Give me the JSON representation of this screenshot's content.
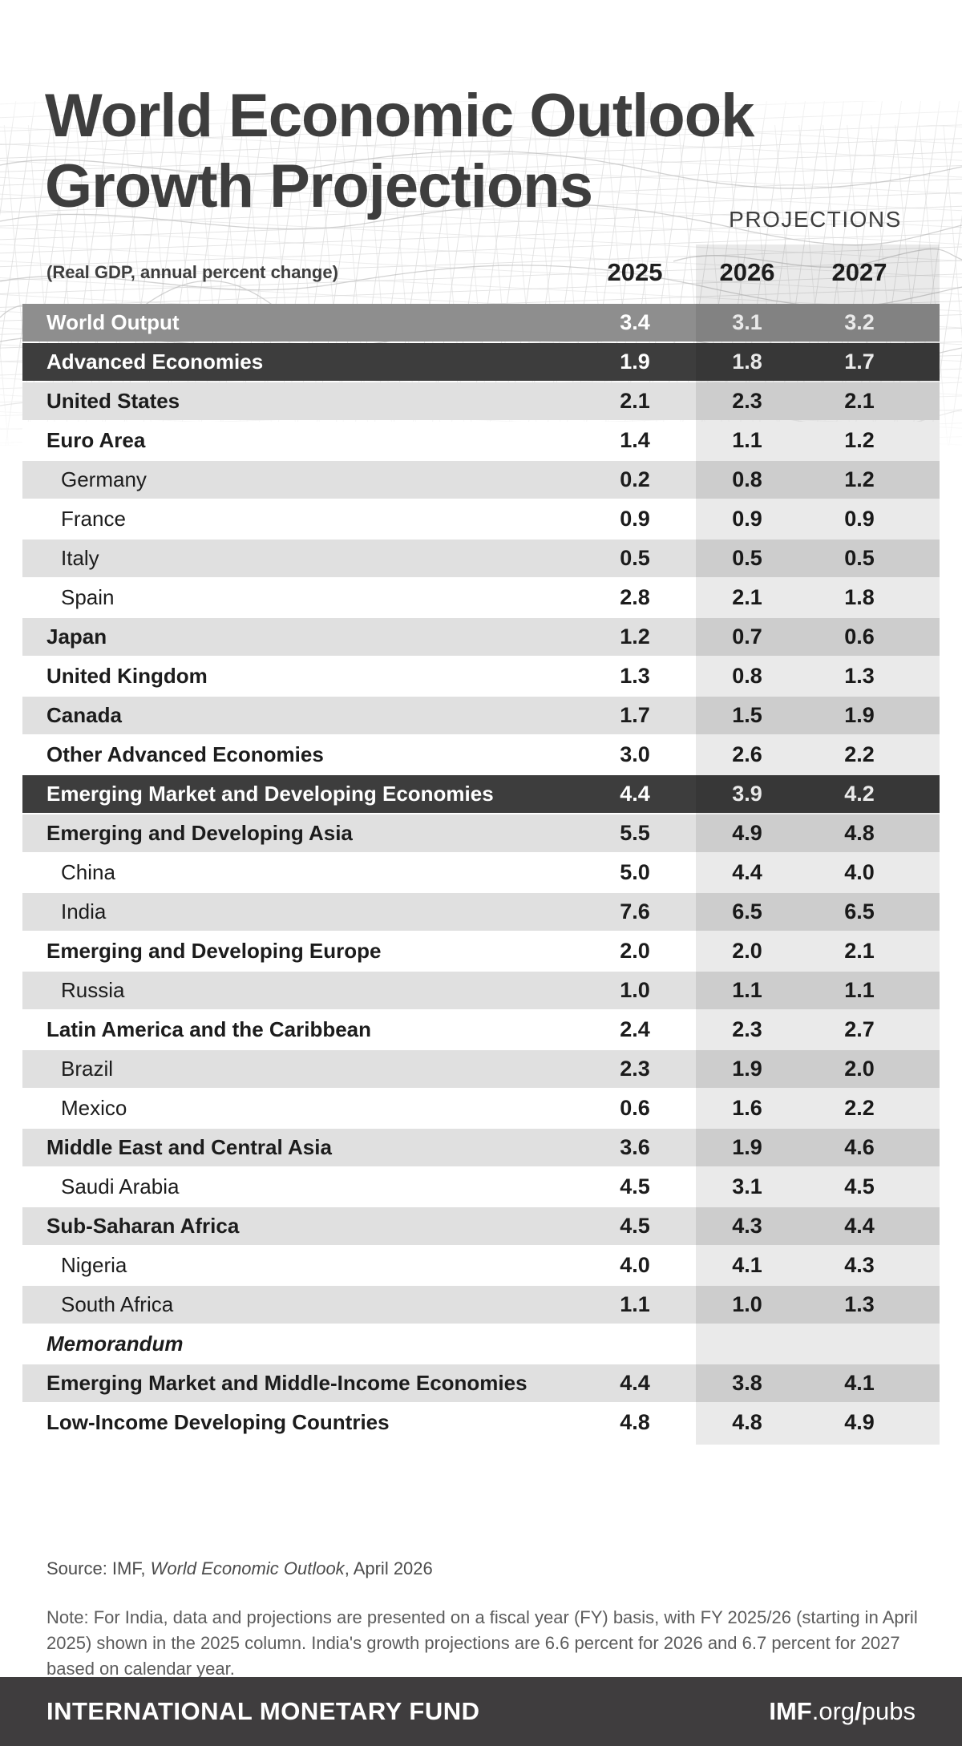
{
  "title": {
    "line1": "World Economic Outlook",
    "line2": "Growth Projections"
  },
  "table": {
    "projections_label": "PROJECTIONS",
    "unit_label": "(Real GDP, annual percent change)",
    "year_columns": [
      "2025",
      "2026",
      "2027"
    ],
    "rows": [
      {
        "label": "World Output",
        "values": [
          "3.4",
          "3.1",
          "3.2"
        ],
        "style": "world",
        "bold": true,
        "indent": false,
        "memo": false
      },
      {
        "label": "Advanced Economies",
        "values": [
          "1.9",
          "1.8",
          "1.7"
        ],
        "style": "dark",
        "bold": true,
        "indent": false,
        "memo": false
      },
      {
        "label": "United States",
        "values": [
          "2.1",
          "2.3",
          "2.1"
        ],
        "style": "stripe-gray",
        "bold": true,
        "indent": false,
        "memo": false
      },
      {
        "label": "Euro Area",
        "values": [
          "1.4",
          "1.1",
          "1.2"
        ],
        "style": "stripe-white",
        "bold": true,
        "indent": false,
        "memo": false
      },
      {
        "label": "Germany",
        "values": [
          "0.2",
          "0.8",
          "1.2"
        ],
        "style": "stripe-gray",
        "bold": false,
        "indent": true,
        "memo": false
      },
      {
        "label": "France",
        "values": [
          "0.9",
          "0.9",
          "0.9"
        ],
        "style": "stripe-white",
        "bold": false,
        "indent": true,
        "memo": false
      },
      {
        "label": "Italy",
        "values": [
          "0.5",
          "0.5",
          "0.5"
        ],
        "style": "stripe-gray",
        "bold": false,
        "indent": true,
        "memo": false
      },
      {
        "label": "Spain",
        "values": [
          "2.8",
          "2.1",
          "1.8"
        ],
        "style": "stripe-white",
        "bold": false,
        "indent": true,
        "memo": false
      },
      {
        "label": "Japan",
        "values": [
          "1.2",
          "0.7",
          "0.6"
        ],
        "style": "stripe-gray",
        "bold": true,
        "indent": false,
        "memo": false
      },
      {
        "label": "United Kingdom",
        "values": [
          "1.3",
          "0.8",
          "1.3"
        ],
        "style": "stripe-white",
        "bold": true,
        "indent": false,
        "memo": false
      },
      {
        "label": "Canada",
        "values": [
          "1.7",
          "1.5",
          "1.9"
        ],
        "style": "stripe-gray",
        "bold": true,
        "indent": false,
        "memo": false
      },
      {
        "label": "Other Advanced Economies",
        "values": [
          "3.0",
          "2.6",
          "2.2"
        ],
        "style": "stripe-white",
        "bold": true,
        "indent": false,
        "memo": false
      },
      {
        "label": "Emerging Market and Developing Economies",
        "values": [
          "4.4",
          "3.9",
          "4.2"
        ],
        "style": "dark",
        "bold": true,
        "indent": false,
        "memo": false
      },
      {
        "label": "Emerging and Developing Asia",
        "values": [
          "5.5",
          "4.9",
          "4.8"
        ],
        "style": "stripe-gray",
        "bold": true,
        "indent": false,
        "memo": false
      },
      {
        "label": "China",
        "values": [
          "5.0",
          "4.4",
          "4.0"
        ],
        "style": "stripe-white",
        "bold": false,
        "indent": true,
        "memo": false
      },
      {
        "label": "India",
        "values": [
          "7.6",
          "6.5",
          "6.5"
        ],
        "style": "stripe-gray",
        "bold": false,
        "indent": true,
        "memo": false
      },
      {
        "label": "Emerging and Developing Europe",
        "values": [
          "2.0",
          "2.0",
          "2.1"
        ],
        "style": "stripe-white",
        "bold": true,
        "indent": false,
        "memo": false
      },
      {
        "label": "Russia",
        "values": [
          "1.0",
          "1.1",
          "1.1"
        ],
        "style": "stripe-gray",
        "bold": false,
        "indent": true,
        "memo": false
      },
      {
        "label": "Latin America and the Caribbean",
        "values": [
          "2.4",
          "2.3",
          "2.7"
        ],
        "style": "stripe-white",
        "bold": true,
        "indent": false,
        "memo": false
      },
      {
        "label": "Brazil",
        "values": [
          "2.3",
          "1.9",
          "2.0"
        ],
        "style": "stripe-gray",
        "bold": false,
        "indent": true,
        "memo": false
      },
      {
        "label": "Mexico",
        "values": [
          "0.6",
          "1.6",
          "2.2"
        ],
        "style": "stripe-white",
        "bold": false,
        "indent": true,
        "memo": false
      },
      {
        "label": "Middle East and Central Asia",
        "values": [
          "3.6",
          "1.9",
          "4.6"
        ],
        "style": "stripe-gray",
        "bold": true,
        "indent": false,
        "memo": false
      },
      {
        "label": "Saudi Arabia",
        "values": [
          "4.5",
          "3.1",
          "4.5"
        ],
        "style": "stripe-white",
        "bold": false,
        "indent": true,
        "memo": false
      },
      {
        "label": "Sub-Saharan Africa",
        "values": [
          "4.5",
          "4.3",
          "4.4"
        ],
        "style": "stripe-gray",
        "bold": true,
        "indent": false,
        "memo": false
      },
      {
        "label": "Nigeria",
        "values": [
          "4.0",
          "4.1",
          "4.3"
        ],
        "style": "stripe-white",
        "bold": false,
        "indent": true,
        "memo": false
      },
      {
        "label": "South Africa",
        "values": [
          "1.1",
          "1.0",
          "1.3"
        ],
        "style": "stripe-gray",
        "bold": false,
        "indent": true,
        "memo": false
      },
      {
        "label": "Memorandum",
        "values": [
          "",
          "",
          ""
        ],
        "style": "stripe-white",
        "bold": true,
        "indent": false,
        "memo": true
      },
      {
        "label": "Emerging Market and Middle-Income Economies",
        "values": [
          "4.4",
          "3.8",
          "4.1"
        ],
        "style": "stripe-gray",
        "bold": true,
        "indent": false,
        "memo": false
      },
      {
        "label": "Low-Income Developing Countries",
        "values": [
          "4.8",
          "4.8",
          "4.9"
        ],
        "style": "stripe-white",
        "bold": true,
        "indent": false,
        "memo": false
      }
    ]
  },
  "footer": {
    "source_prefix": "Source: IMF, ",
    "source_italic": "World Economic Outlook",
    "source_suffix": ", April 2026",
    "note": "Note: For India, data and projections are presented on a fiscal year (FY) basis, with FY 2025/26 (starting in April 2025) shown in the 2025 column. India's growth projections are 6.6 percent for 2026 and 6.7 percent for 2027 based on calendar year."
  },
  "bottom_bar": {
    "org": "INTERNATIONAL MONETARY FUND",
    "url_imf": "IMF",
    "url_org": ".org",
    "url_slash": "/",
    "url_pubs": "pubs"
  },
  "colors": {
    "title_text": "#3e3e3e",
    "row_world_bg": "#8e8e8e",
    "row_dark_bg": "#3d3d3d",
    "row_stripe_bg": "#e0e0e0",
    "projection_band": "rgba(0,0,0,0.082)",
    "bottom_bar_bg": "#3f3d3e"
  }
}
